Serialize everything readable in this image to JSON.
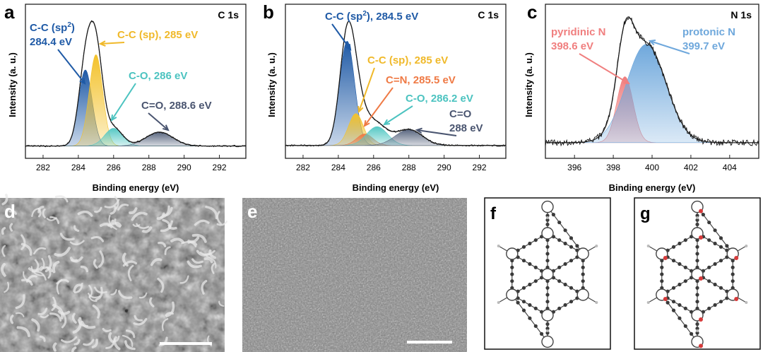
{
  "chart_data": [
    {
      "type": "area",
      "panel_label": "a",
      "corner_label": "C 1s",
      "xlabel": "Binding energy (eV)",
      "ylabel": "Intensity (a. u.)",
      "xlim": [
        281,
        293.5
      ],
      "xticks": [
        "282",
        "284",
        "286",
        "288",
        "290",
        "292"
      ],
      "baseline": 0.03,
      "experimental_max": 1.0,
      "components": [
        {
          "name": "C-C (sp2)",
          "center": 284.4,
          "height": 0.6,
          "fwhm": 0.9,
          "color": "#1f5aa6"
        },
        {
          "name": "C-C (sp)",
          "center": 285.0,
          "height": 0.72,
          "fwhm": 0.9,
          "color": "#f3c22b"
        },
        {
          "name": "C-O",
          "center": 286.0,
          "height": 0.14,
          "fwhm": 1.2,
          "color": "#55c8c4"
        },
        {
          "name": "C=O",
          "center": 288.6,
          "height": 0.11,
          "fwhm": 1.8,
          "color": "#5a6780"
        }
      ],
      "annotations": [
        {
          "lines": [
            "C-C (sp2)",
            "284.4 eV"
          ],
          "color": "#1f5aa6",
          "target": 284.4
        },
        {
          "lines": [
            "C-C (sp), 285 eV"
          ],
          "color": "#f0b92a",
          "target": 285.0
        },
        {
          "lines": [
            "C-O, 286 eV"
          ],
          "color": "#4cc3c0",
          "target": 286.0
        },
        {
          "lines": [
            "C=O, 288.6 eV"
          ],
          "color": "#4a5570",
          "target": 288.6
        }
      ]
    },
    {
      "type": "area",
      "panel_label": "b",
      "corner_label": "C 1s",
      "xlabel": "Binding energy (eV)",
      "ylabel": "Intensity (a. u.)",
      "xlim": [
        281,
        293.5
      ],
      "xticks": [
        "282",
        "284",
        "286",
        "288",
        "290",
        "292"
      ],
      "baseline": 0.03,
      "experimental_max": 1.0,
      "components": [
        {
          "name": "C-C (sp2)",
          "center": 284.5,
          "height": 0.72,
          "fwhm": 1.0,
          "color": "#1f5aa6"
        },
        {
          "name": "C-C (sp)",
          "center": 285.0,
          "height": 0.22,
          "fwhm": 1.0,
          "color": "#f3c22b"
        },
        {
          "name": "C=N",
          "center": 285.5,
          "height": 0.08,
          "fwhm": 1.1,
          "color": "#ef7a45"
        },
        {
          "name": "C-O",
          "center": 286.2,
          "height": 0.13,
          "fwhm": 1.4,
          "color": "#55c8c4"
        },
        {
          "name": "C=O",
          "center": 288.0,
          "height": 0.11,
          "fwhm": 1.8,
          "color": "#5a6780"
        }
      ],
      "annotations": [
        {
          "lines": [
            "C-C (sp2), 284.5 eV"
          ],
          "color": "#1f5aa6",
          "target": 284.5
        },
        {
          "lines": [
            "C-C (sp), 285 eV"
          ],
          "color": "#f0b92a",
          "target": 285.0
        },
        {
          "lines": [
            "C=N, 285.5 eV"
          ],
          "color": "#ef7a45",
          "target": 285.5
        },
        {
          "lines": [
            "C-O, 286.2 eV"
          ],
          "color": "#4cc3c0",
          "target": 286.2
        },
        {
          "lines": [
            "C=O",
            "288 eV"
          ],
          "color": "#4a5570",
          "target": 288.0
        }
      ]
    },
    {
      "type": "area",
      "panel_label": "c",
      "corner_label": "N 1s",
      "xlabel": "Binding energy (eV)",
      "ylabel": "Intensity (a. u.)",
      "xlim": [
        394.5,
        405.5
      ],
      "xticks": [
        "396",
        "398",
        "400",
        "402",
        "404"
      ],
      "baseline": 0.06,
      "experimental_max": 1.0,
      "components": [
        {
          "name": "pyridinic N",
          "center": 398.6,
          "height": 0.55,
          "fwhm": 1.0,
          "color": "#f07f7f"
        },
        {
          "name": "protonic N",
          "center": 399.7,
          "height": 0.82,
          "fwhm": 2.4,
          "color": "#6fa8dc"
        }
      ],
      "annotations": [
        {
          "lines": [
            "pyridinic N",
            "398.6 eV"
          ],
          "color": "#f07f7f",
          "target": 398.6
        },
        {
          "lines": [
            "protonic N",
            "399.7 eV"
          ],
          "color": "#6fa8dc",
          "target": 399.7
        }
      ]
    }
  ],
  "micrographs": [
    {
      "panel_label": "d",
      "description": "SEM image"
    },
    {
      "panel_label": "e",
      "description": "SEM image"
    }
  ],
  "structures": [
    {
      "panel_label": "f"
    },
    {
      "panel_label": "g"
    }
  ],
  "colors": {
    "envelope": "#333333",
    "experimental": "#111111",
    "atom": "#3a3a3a",
    "heteroatom": "#d63b3b"
  }
}
